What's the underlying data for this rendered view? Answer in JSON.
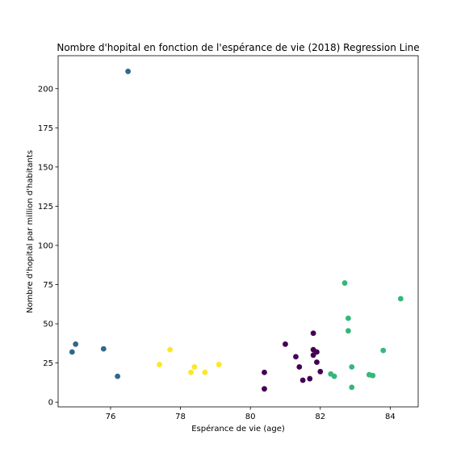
{
  "chart_data": {
    "type": "scatter",
    "title": "Nombre d'hopital en fonction de l'espérance de vie (2018) Regression Line",
    "xlabel": "Espérance de vie (age)",
    "ylabel": "Nombre d'hopital par million d'habitants",
    "xlim": [
      74.5,
      84.8
    ],
    "ylim": [
      -3,
      221
    ],
    "xticks": [
      76,
      78,
      80,
      82,
      84
    ],
    "yticks": [
      0,
      25,
      50,
      75,
      100,
      125,
      150,
      175,
      200
    ],
    "grid": false,
    "colors": {
      "cluster_blue": "#31688e",
      "cluster_yellow": "#fde725",
      "cluster_purple": "#440154",
      "cluster_green": "#35b779"
    },
    "series": [
      {
        "color": "#31688e",
        "points": [
          {
            "x": 76.5,
            "y": 211
          },
          {
            "x": 75.0,
            "y": 37
          },
          {
            "x": 74.9,
            "y": 32
          },
          {
            "x": 75.8,
            "y": 34
          },
          {
            "x": 76.2,
            "y": 16.5
          }
        ]
      },
      {
        "color": "#fde725",
        "points": [
          {
            "x": 77.7,
            "y": 33.5
          },
          {
            "x": 77.4,
            "y": 24
          },
          {
            "x": 78.4,
            "y": 22.5
          },
          {
            "x": 78.3,
            "y": 19
          },
          {
            "x": 78.7,
            "y": 19
          },
          {
            "x": 79.1,
            "y": 24
          }
        ]
      },
      {
        "color": "#440154",
        "points": [
          {
            "x": 80.4,
            "y": 19
          },
          {
            "x": 80.4,
            "y": 8.5
          },
          {
            "x": 81.0,
            "y": 37
          },
          {
            "x": 81.3,
            "y": 29
          },
          {
            "x": 81.4,
            "y": 22.5
          },
          {
            "x": 81.5,
            "y": 14
          },
          {
            "x": 81.7,
            "y": 15
          },
          {
            "x": 81.8,
            "y": 44
          },
          {
            "x": 81.8,
            "y": 33.5
          },
          {
            "x": 81.8,
            "y": 30
          },
          {
            "x": 81.9,
            "y": 32
          },
          {
            "x": 81.9,
            "y": 25.5
          },
          {
            "x": 82.0,
            "y": 19.5
          }
        ]
      },
      {
        "color": "#35b779",
        "points": [
          {
            "x": 82.3,
            "y": 18
          },
          {
            "x": 82.4,
            "y": 16.5
          },
          {
            "x": 82.7,
            "y": 76
          },
          {
            "x": 82.8,
            "y": 53.5
          },
          {
            "x": 82.8,
            "y": 45.5
          },
          {
            "x": 82.9,
            "y": 22.5
          },
          {
            "x": 82.9,
            "y": 9.5
          },
          {
            "x": 83.4,
            "y": 17.5
          },
          {
            "x": 83.5,
            "y": 17
          },
          {
            "x": 83.8,
            "y": 33
          },
          {
            "x": 84.3,
            "y": 66
          }
        ]
      }
    ]
  }
}
